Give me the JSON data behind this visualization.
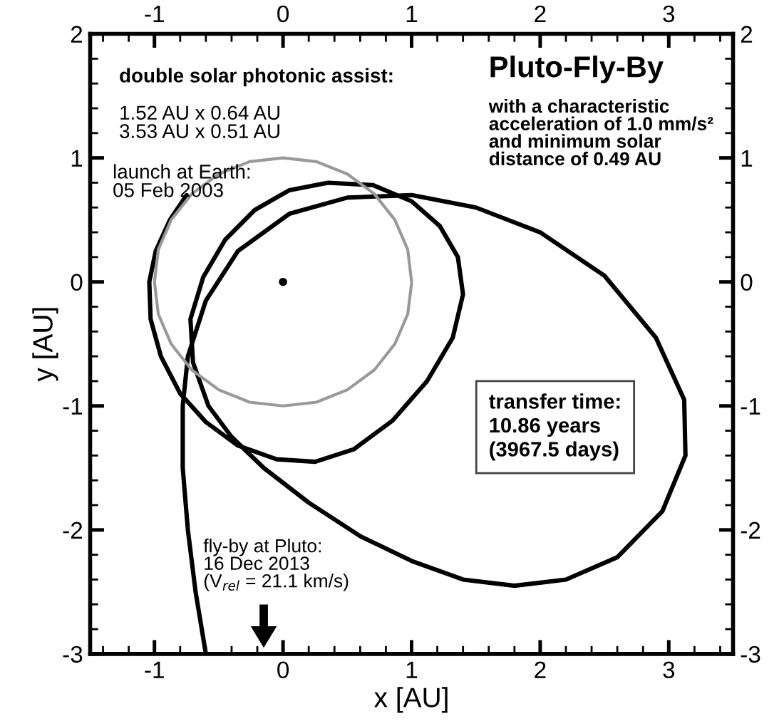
{
  "chart_data": {
    "type": "line",
    "title": "Pluto-Fly-By",
    "subtitle": "with a characteristic\nacceleration of 1.0 mm/s²\nand minimum solar\ndistance of 0.49 AU",
    "xlabel": "x [AU]",
    "ylabel": "y [AU]",
    "annotations": [
      "double solar photonic assist:",
      "1.52 AU x 0.64 AU\n3.53 AU x 0.51 AU",
      "launch at Earth:\n05 Feb 2003",
      "transfer time:\n10.86 years\n(3967.5 days)",
      "fly-by at Pluto:\n16 Dec 2013\n(V$_{rel}$ = 21.1 km/s)"
    ],
    "series": [
      {
        "color": "#000000",
        "x": [
          -0.75,
          -0.88,
          -0.99,
          -1.04,
          -1.03,
          -0.95,
          -0.8,
          -0.6,
          -0.35,
          -0.05,
          0.25,
          0.55,
          0.85,
          1.12,
          1.32,
          1.4,
          1.36,
          1.22,
          1.0,
          0.7,
          0.35,
          0.05,
          -0.22,
          -0.45,
          -0.62,
          -0.72,
          -0.7,
          -0.58,
          -0.4,
          -0.15,
          0.2,
          0.6,
          1.0,
          1.4,
          1.8,
          2.2,
          2.6,
          2.95,
          3.13,
          3.12,
          2.9,
          2.5,
          2.0,
          1.5,
          1.0,
          0.5,
          0.05,
          -0.35,
          -0.6,
          -0.74,
          -0.78,
          -0.78,
          -0.74,
          -0.68,
          -0.6
        ],
        "values": [
          0.7,
          0.5,
          0.25,
          0.0,
          -0.3,
          -0.6,
          -0.9,
          -1.13,
          -1.32,
          -1.43,
          -1.45,
          -1.35,
          -1.12,
          -0.8,
          -0.45,
          -0.1,
          0.2,
          0.45,
          0.65,
          0.78,
          0.8,
          0.74,
          0.58,
          0.34,
          0.04,
          -0.3,
          -0.65,
          -1.0,
          -1.25,
          -1.5,
          -1.78,
          -2.05,
          -2.25,
          -2.4,
          -2.45,
          -2.4,
          -2.22,
          -1.85,
          -1.4,
          -0.95,
          -0.45,
          0.05,
          0.4,
          0.6,
          0.7,
          0.68,
          0.55,
          0.25,
          -0.15,
          -0.6,
          -1.0,
          -1.5,
          -2.0,
          -2.5,
          -3.0
        ]
      },
      {
        "color": "#999999",
        "x": [
          1,
          0.97,
          0.87,
          0.71,
          0.5,
          0.26,
          0,
          -0.26,
          -0.5,
          -0.71,
          -0.87,
          -0.97,
          -1,
          -0.97,
          -0.87,
          -0.71,
          -0.5,
          -0.26,
          0,
          0.26,
          0.5,
          0.71,
          0.87,
          0.97,
          1.0
        ],
        "values": [
          0,
          0.26,
          0.5,
          0.71,
          0.87,
          0.97,
          1,
          0.97,
          0.87,
          0.71,
          0.5,
          0.26,
          0,
          -0.26,
          -0.5,
          -0.71,
          -0.87,
          -0.97,
          -1,
          -0.97,
          -0.87,
          -0.71,
          -0.5,
          -0.26,
          -0.01
        ]
      },
      {
        "type": "scatter",
        "marker": "circle",
        "color": "#000000",
        "x": [
          0
        ],
        "values": [
          0
        ]
      }
    ],
    "xlim": [
      -1.5,
      3.5
    ],
    "ylim": [
      -3,
      2
    ],
    "xticks": [
      -1,
      0,
      1,
      2,
      3,
      {
        "value": -1.4,
        "label": null
      },
      {
        "value": -1.2,
        "label": null
      },
      {
        "value": -0.8,
        "label": null
      },
      {
        "value": -0.6,
        "label": null
      },
      {
        "value": -0.4,
        "label": null
      },
      {
        "value": -0.2,
        "label": null
      },
      {
        "value": 0.2,
        "label": null
      },
      {
        "value": 0.4,
        "label": null
      },
      {
        "value": 0.6,
        "label": null
      },
      {
        "value": 0.8,
        "label": null
      },
      {
        "value": 1.2,
        "label": null
      },
      {
        "value": 1.4,
        "label": null
      },
      {
        "value": 1.6,
        "label": null
      },
      {
        "value": 1.8,
        "label": null
      },
      {
        "value": 2.2,
        "label": null
      },
      {
        "value": 2.4,
        "label": null
      },
      {
        "value": 2.6,
        "label": null
      },
      {
        "value": 2.8,
        "label": null
      },
      {
        "value": 3.2,
        "label": null
      },
      {
        "value": 3.4,
        "label": null
      }
    ],
    "yticks": [
      -3,
      -2,
      -1,
      0,
      1,
      2,
      {
        "value": -2.8,
        "label": null
      },
      {
        "value": -2.6,
        "label": null
      },
      {
        "value": -2.4,
        "label": null
      },
      {
        "value": -2.2,
        "label": null
      },
      {
        "value": -1.8,
        "label": null
      },
      {
        "value": -1.6,
        "label": null
      },
      {
        "value": -1.4,
        "label": null
      },
      {
        "value": -1.2,
        "label": null
      },
      {
        "value": -0.8,
        "label": null
      },
      {
        "value": -0.6,
        "label": null
      },
      {
        "value": -0.4,
        "label": null
      },
      {
        "value": -0.2,
        "label": null
      },
      {
        "value": 0.2,
        "label": null
      },
      {
        "value": 0.4,
        "label": null
      },
      {
        "value": 0.6,
        "label": null
      },
      {
        "value": 0.8,
        "label": null
      },
      {
        "value": 1.2,
        "label": null
      },
      {
        "value": 1.4,
        "label": null
      },
      {
        "value": 1.6,
        "label": null
      },
      {
        "value": 1.8,
        "label": null
      }
    ],
    "x2lim": [
      -1.5,
      3.5
    ],
    "x2ticks": [
      -1,
      0,
      1,
      2,
      3
    ],
    "y2lim": [
      -3,
      2
    ],
    "y2ticks": [
      -3,
      -2,
      -1,
      0,
      1,
      2
    ],
    "grid": false,
    "marker": "none",
    "line_style": "solid"
  }
}
